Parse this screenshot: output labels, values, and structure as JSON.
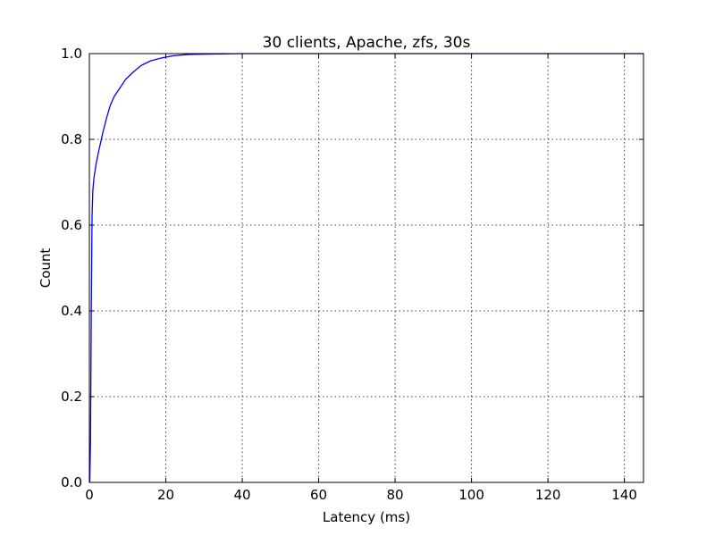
{
  "chart_data": {
    "type": "line",
    "title": "30 clients, Apache, zfs, 30s",
    "xlabel": "Latency (ms)",
    "ylabel": "Count",
    "xlim": [
      0,
      145
    ],
    "ylim": [
      0,
      1.0
    ],
    "x_ticks": [
      0,
      20,
      40,
      60,
      80,
      100,
      120,
      140
    ],
    "y_ticks": [
      0.0,
      0.2,
      0.4,
      0.6,
      0.8,
      1.0
    ],
    "x_tick_labels": [
      "0",
      "20",
      "40",
      "60",
      "80",
      "100",
      "120",
      "140"
    ],
    "y_tick_labels": [
      "0.0",
      "0.2",
      "0.4",
      "0.6",
      "0.8",
      "1.0"
    ],
    "grid": true,
    "series": [
      {
        "color": "#0000ff",
        "points": [
          [
            0.1,
            0.0
          ],
          [
            0.3,
            0.1
          ],
          [
            0.5,
            0.4
          ],
          [
            0.7,
            0.62
          ],
          [
            0.9,
            0.68
          ],
          [
            1.2,
            0.71
          ],
          [
            1.8,
            0.745
          ],
          [
            2.5,
            0.775
          ],
          [
            3.5,
            0.815
          ],
          [
            4.5,
            0.85
          ],
          [
            5.5,
            0.88
          ],
          [
            6.5,
            0.9
          ],
          [
            8,
            0.92
          ],
          [
            9.5,
            0.94
          ],
          [
            11.5,
            0.957
          ],
          [
            13.5,
            0.972
          ],
          [
            16,
            0.983
          ],
          [
            19,
            0.99
          ],
          [
            22,
            0.995
          ],
          [
            26,
            0.998
          ],
          [
            32,
            0.999
          ],
          [
            40,
            1.0
          ],
          [
            60,
            1.0
          ],
          [
            100,
            1.0
          ],
          [
            145,
            1.0
          ]
        ]
      }
    ]
  }
}
